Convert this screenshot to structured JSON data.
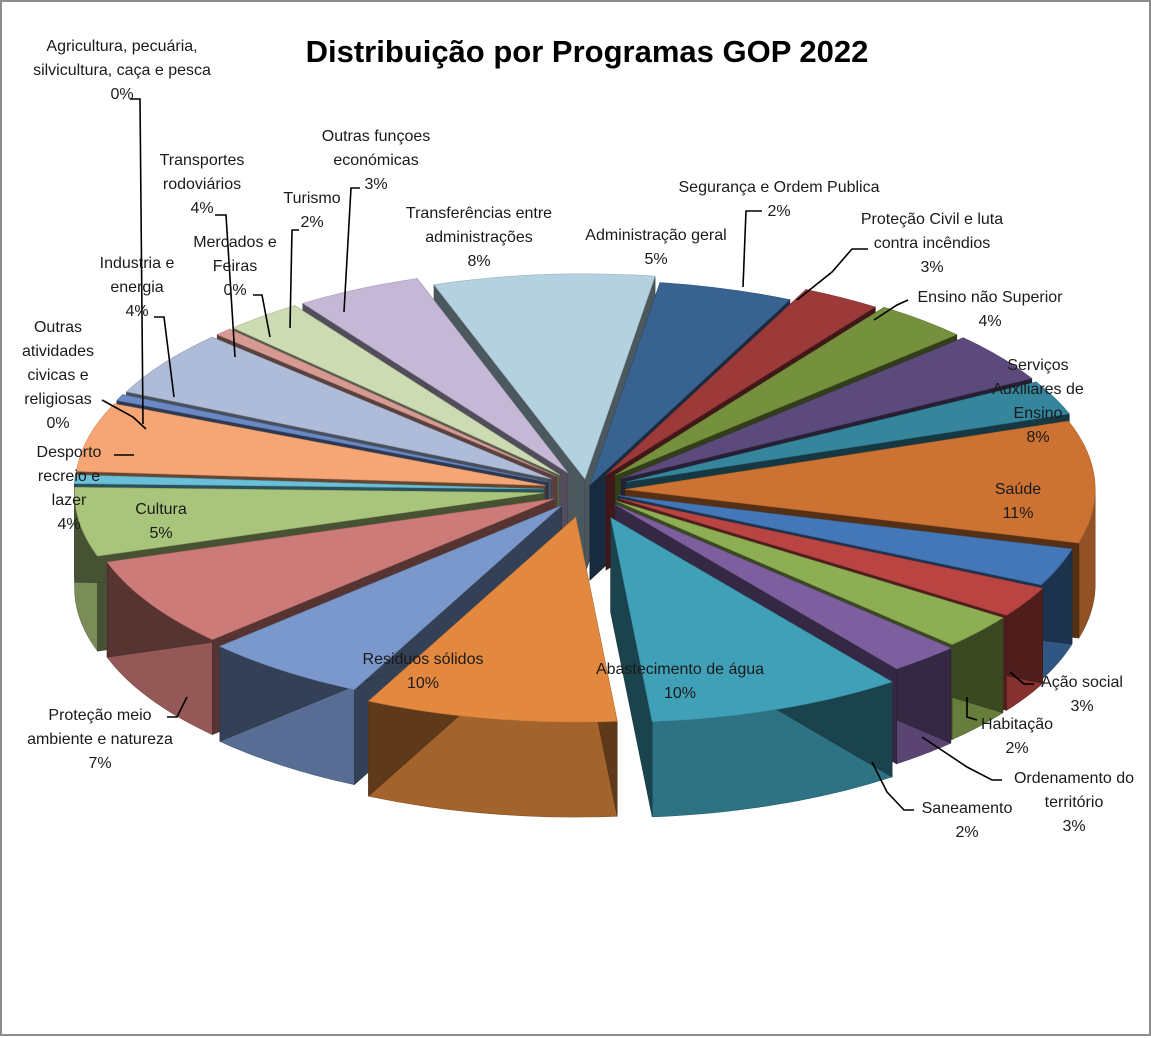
{
  "chart_data": {
    "type": "pie",
    "variant": "3d-exploded",
    "title": "Distribuição por Programas GOP 2022",
    "legend": "none",
    "slices": [
      {
        "label": "Administração geral",
        "value": 5,
        "display": "5%",
        "color": "#386391"
      },
      {
        "label": "Segurança e Ordem Publica",
        "value": 2,
        "display": "2%",
        "color": "#9b3a38"
      },
      {
        "label": "Proteção Civil e luta contra incêndios",
        "value": 3,
        "display": "3%",
        "color": "#76913d"
      },
      {
        "label": "Ensino não Superior",
        "value": 4,
        "display": "4%",
        "color": "#5c4a7c"
      },
      {
        "label": "Serviços Auxiliares de Ensino",
        "value": 8,
        "display": "8%",
        "color": "#35869d"
      },
      {
        "label": "Saúde",
        "value": 11,
        "display": "11%",
        "color": "#cc7233"
      },
      {
        "label": "Ação social",
        "value": 3,
        "display": "3%",
        "color": "#4377b7"
      },
      {
        "label": "Habitação",
        "value": 2,
        "display": "2%",
        "color": "#b94442"
      },
      {
        "label": "Ordenamento do território",
        "value": 3,
        "display": "3%",
        "color": "#8dae52"
      },
      {
        "label": "Saneamento",
        "value": 2,
        "display": "2%",
        "color": "#7d5f9f"
      },
      {
        "label": "Abastecimento de água",
        "value": 10,
        "display": "10%",
        "color": "#40a0b7"
      },
      {
        "label": "Residuos sólidos",
        "value": 10,
        "display": "10%",
        "color": "#e3893f"
      },
      {
        "label": "Proteção meio ambiente e natureza",
        "value": 7,
        "display": "7%",
        "color": "#7a98cc"
      },
      {
        "label": "Cultura",
        "value": 5,
        "display": "5%",
        "color": "#cd7b78"
      },
      {
        "label": "Desporto recreio e lazer",
        "value": 4,
        "display": "4%",
        "color": "#a9c47b"
      },
      {
        "label": "Outras atividades civicas e religiosas",
        "value": 0,
        "display": "0%",
        "color": "#69c0d8"
      },
      {
        "label": "Industria e energia",
        "value": 4,
        "display": "4%",
        "color": "#f5a674"
      },
      {
        "label": "Agricultura, pecuária, silvicultura, caça e pesca",
        "value": 0,
        "display": "0%",
        "color": "#6a88c4"
      },
      {
        "label": "Transportes rodoviários",
        "value": 4,
        "display": "4%",
        "color": "#aebcd9"
      },
      {
        "label": "Mercados e Feiras",
        "value": 0,
        "display": "0%",
        "color": "#d69a93"
      },
      {
        "label": "Turismo",
        "value": 2,
        "display": "2%",
        "color": "#cddbb2"
      },
      {
        "label": "Outras funçoes económicas",
        "value": 3,
        "display": "3%",
        "color": "#c4b8d6"
      },
      {
        "label": "Transferências entre administrações",
        "value": 8,
        "display": "8%",
        "color": "#b3d1de"
      }
    ]
  }
}
